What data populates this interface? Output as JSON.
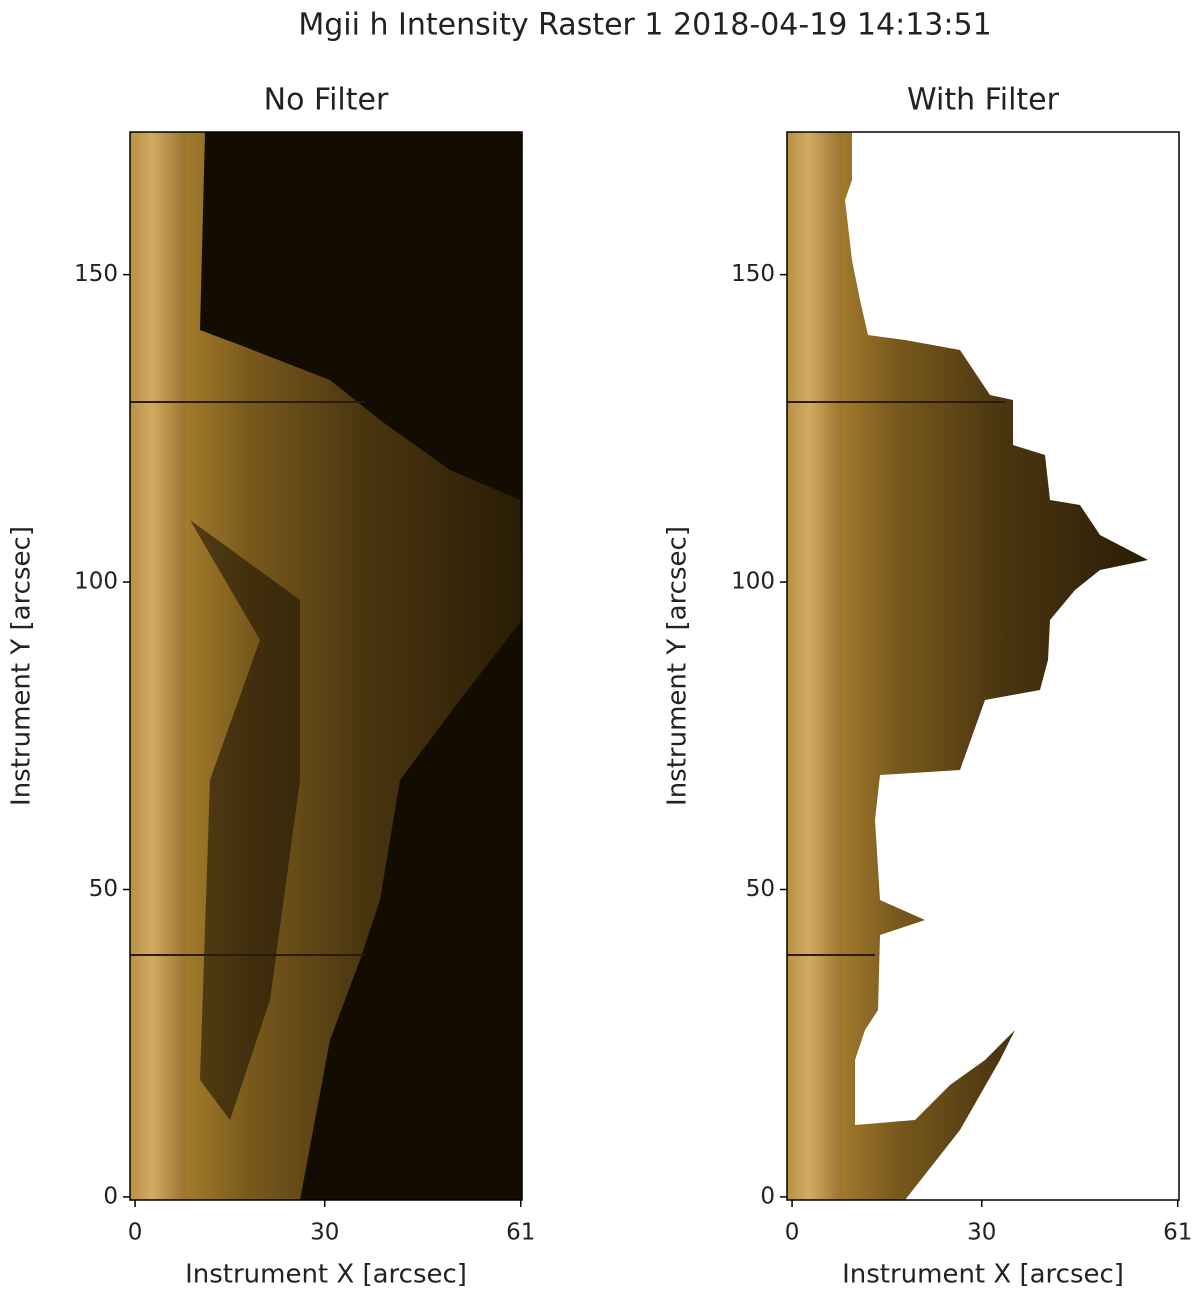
{
  "title": "Mgii h Intensity Raster 1 2018-04-19 14:13:51",
  "chart_data": [
    {
      "type": "image",
      "title": "No Filter",
      "xlabel": "Instrument X [arcsec]",
      "ylabel": "Instrument Y [arcsec]",
      "xlim": [
        -0.8,
        61.2
      ],
      "ylim": [
        -0.5,
        173.2
      ],
      "xticks": [
        0,
        30,
        61
      ],
      "yticks": [
        0,
        50,
        100,
        150
      ]
    },
    {
      "type": "image",
      "title": "With Filter",
      "xlabel": "Instrument X [arcsec]",
      "ylabel": "Instrument Y [arcsec]",
      "xlim": [
        -0.8,
        61.2
      ],
      "ylim": [
        -0.5,
        173.2
      ],
      "xticks": [
        0,
        30,
        61
      ],
      "yticks": [
        0,
        50,
        100,
        150
      ]
    }
  ]
}
